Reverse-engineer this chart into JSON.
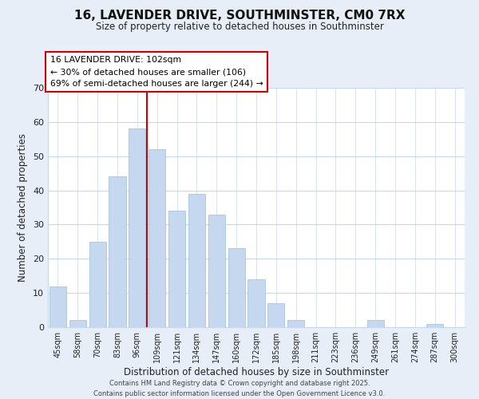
{
  "title": "16, LAVENDER DRIVE, SOUTHMINSTER, CM0 7RX",
  "subtitle": "Size of property relative to detached houses in Southminster",
  "xlabel": "Distribution of detached houses by size in Southminster",
  "ylabel": "Number of detached properties",
  "bar_labels": [
    "45sqm",
    "58sqm",
    "70sqm",
    "83sqm",
    "96sqm",
    "109sqm",
    "121sqm",
    "134sqm",
    "147sqm",
    "160sqm",
    "172sqm",
    "185sqm",
    "198sqm",
    "211sqm",
    "223sqm",
    "236sqm",
    "249sqm",
    "261sqm",
    "274sqm",
    "287sqm",
    "300sqm"
  ],
  "bar_values": [
    12,
    2,
    25,
    44,
    58,
    52,
    34,
    39,
    33,
    23,
    14,
    7,
    2,
    0,
    0,
    0,
    2,
    0,
    0,
    1,
    0
  ],
  "bar_color": "#c5d8f0",
  "bar_edge_color": "#a8c4e0",
  "ylim": [
    0,
    70
  ],
  "vline_x": 4.5,
  "vline_color": "#cc0000",
  "annotation_title": "16 LAVENDER DRIVE: 102sqm",
  "annotation_line1": "← 30% of detached houses are smaller (106)",
  "annotation_line2": "69% of semi-detached houses are larger (244) →",
  "footer1": "Contains HM Land Registry data © Crown copyright and database right 2025.",
  "footer2": "Contains public sector information licensed under the Open Government Licence v3.0.",
  "bg_color": "#e8eef8",
  "plot_bg_color": "#ffffff",
  "grid_color": "#c8d8ec"
}
